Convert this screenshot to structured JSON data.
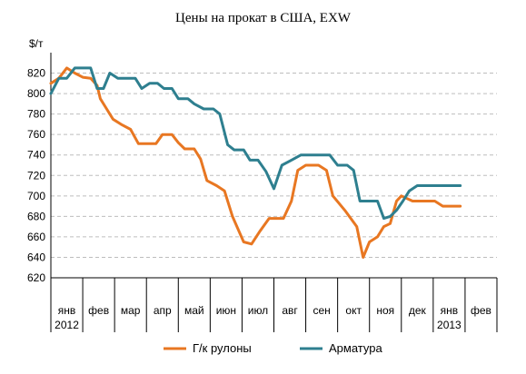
{
  "chart_data": {
    "type": "line",
    "title": "Цены на прокат в США, EXW",
    "ylabel": "$/т",
    "ylim": [
      620,
      840
    ],
    "yticks": [
      620,
      640,
      660,
      680,
      700,
      720,
      740,
      760,
      780,
      800,
      820
    ],
    "grid": true,
    "legend_position": "bottom",
    "month_labels": [
      "янв",
      "фев",
      "мар",
      "апр",
      "май",
      "июн",
      "июл",
      "авг",
      "сен",
      "окт",
      "ноя",
      "дек",
      "янв",
      "фев"
    ],
    "year_labels": [
      {
        "month_index": 0,
        "text": "2012"
      },
      {
        "month_index": 12,
        "text": "2013"
      }
    ],
    "x_unit": "months from January 2012",
    "series": [
      {
        "name": "Г/к рулоны",
        "color": "#e87722",
        "points": [
          [
            0.0,
            810
          ],
          [
            0.25,
            815
          ],
          [
            0.5,
            825
          ],
          [
            0.75,
            820
          ],
          [
            1.0,
            816
          ],
          [
            1.25,
            815
          ],
          [
            1.45,
            808
          ],
          [
            1.55,
            795
          ],
          [
            1.75,
            785
          ],
          [
            1.95,
            775
          ],
          [
            2.2,
            770
          ],
          [
            2.5,
            765
          ],
          [
            2.75,
            751
          ],
          [
            3.05,
            751
          ],
          [
            3.3,
            751
          ],
          [
            3.5,
            760
          ],
          [
            3.8,
            760
          ],
          [
            4.0,
            752
          ],
          [
            4.2,
            746
          ],
          [
            4.5,
            746
          ],
          [
            4.7,
            736
          ],
          [
            4.9,
            715
          ],
          [
            5.2,
            710
          ],
          [
            5.45,
            705
          ],
          [
            5.7,
            680
          ],
          [
            6.05,
            655
          ],
          [
            6.3,
            653
          ],
          [
            6.55,
            665
          ],
          [
            6.85,
            678
          ],
          [
            7.3,
            678
          ],
          [
            7.55,
            695
          ],
          [
            7.75,
            725
          ],
          [
            8.0,
            730
          ],
          [
            8.4,
            730
          ],
          [
            8.65,
            725
          ],
          [
            8.85,
            700
          ],
          [
            9.25,
            685
          ],
          [
            9.6,
            670
          ],
          [
            9.8,
            640
          ],
          [
            10.0,
            655
          ],
          [
            10.25,
            660
          ],
          [
            10.45,
            670
          ],
          [
            10.65,
            673
          ],
          [
            10.85,
            695
          ],
          [
            11.0,
            700
          ],
          [
            11.35,
            695
          ],
          [
            11.65,
            695
          ],
          [
            12.05,
            695
          ],
          [
            12.3,
            690
          ],
          [
            12.85,
            690
          ]
        ]
      },
      {
        "name": "Арматура",
        "color": "#2e7f8f",
        "points": [
          [
            0.0,
            800
          ],
          [
            0.25,
            815
          ],
          [
            0.5,
            815
          ],
          [
            0.75,
            825
          ],
          [
            1.0,
            825
          ],
          [
            1.25,
            825
          ],
          [
            1.45,
            805
          ],
          [
            1.65,
            805
          ],
          [
            1.85,
            820
          ],
          [
            2.1,
            815
          ],
          [
            2.4,
            815
          ],
          [
            2.65,
            815
          ],
          [
            2.85,
            805
          ],
          [
            3.1,
            810
          ],
          [
            3.35,
            810
          ],
          [
            3.55,
            805
          ],
          [
            3.8,
            805
          ],
          [
            4.0,
            795
          ],
          [
            4.3,
            795
          ],
          [
            4.5,
            790
          ],
          [
            4.8,
            785
          ],
          [
            5.1,
            785
          ],
          [
            5.3,
            780
          ],
          [
            5.55,
            750
          ],
          [
            5.75,
            745
          ],
          [
            6.05,
            745
          ],
          [
            6.25,
            735
          ],
          [
            6.5,
            735
          ],
          [
            6.75,
            724
          ],
          [
            7.0,
            707
          ],
          [
            7.25,
            730
          ],
          [
            7.55,
            735
          ],
          [
            7.85,
            740
          ],
          [
            8.15,
            740
          ],
          [
            8.45,
            740
          ],
          [
            8.75,
            740
          ],
          [
            9.0,
            730
          ],
          [
            9.3,
            730
          ],
          [
            9.5,
            725
          ],
          [
            9.7,
            695
          ],
          [
            10.0,
            695
          ],
          [
            10.25,
            695
          ],
          [
            10.45,
            678
          ],
          [
            10.65,
            680
          ],
          [
            10.85,
            686
          ],
          [
            11.05,
            695
          ],
          [
            11.25,
            705
          ],
          [
            11.5,
            710
          ],
          [
            11.85,
            710
          ],
          [
            12.2,
            710
          ],
          [
            12.6,
            710
          ],
          [
            12.85,
            710
          ]
        ]
      }
    ]
  }
}
